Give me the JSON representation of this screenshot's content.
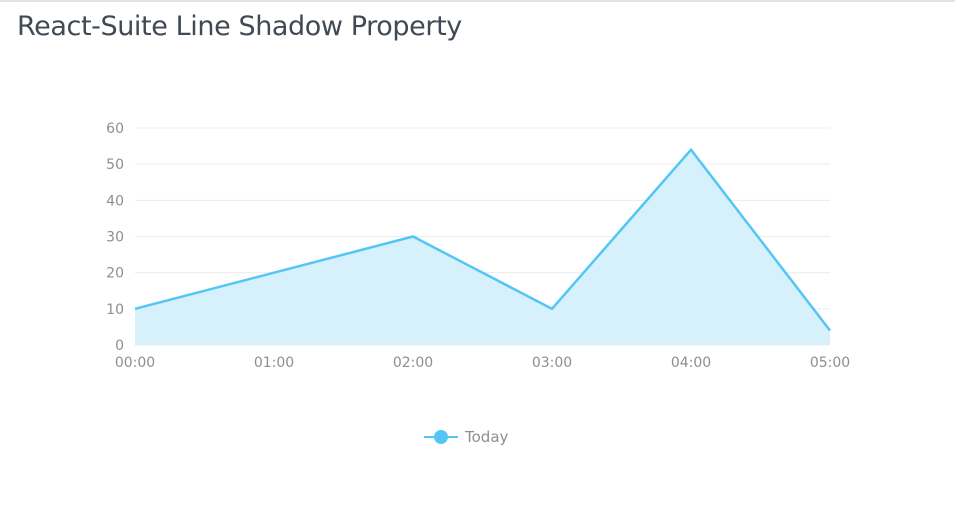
{
  "page": {
    "title": "React-Suite Line Shadow Property"
  },
  "chart_data": {
    "type": "area",
    "title": "",
    "xlabel": "",
    "ylabel": "",
    "categories": [
      "00:00",
      "01:00",
      "02:00",
      "03:00",
      "04:00",
      "05:00"
    ],
    "series": [
      {
        "name": "Today",
        "values": [
          10,
          20,
          30,
          10,
          54,
          4
        ]
      }
    ],
    "ylim": [
      0,
      60
    ],
    "yticks": [
      0,
      10,
      20,
      30,
      40,
      50,
      60
    ],
    "grid": true,
    "legend_position": "bottom-center",
    "colors": {
      "line": "#53c6f5",
      "fill": "#d6f1fc",
      "grid": "#ececec",
      "tick_text": "#8e8e93"
    }
  }
}
